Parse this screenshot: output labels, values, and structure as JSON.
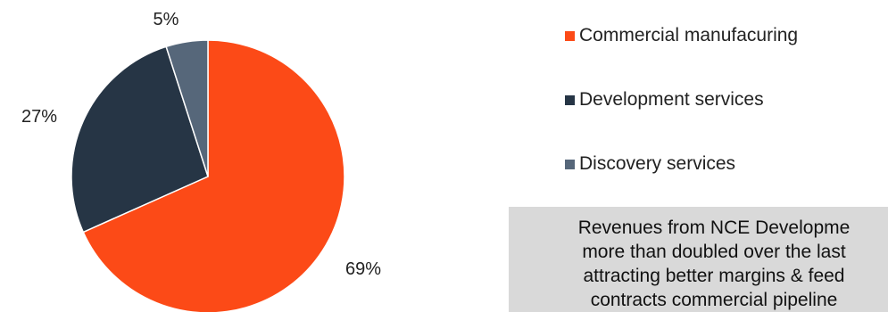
{
  "chart_data": {
    "type": "pie",
    "categories": [
      "Commercial manufacuring",
      "Development services",
      "Discovery services"
    ],
    "values": [
      69,
      27,
      5
    ],
    "value_labels": [
      "69%",
      "27%",
      "5%"
    ],
    "colors": [
      "#fc4a17",
      "#263545",
      "#56677a"
    ],
    "start_angle": "12 o'clock, clockwise",
    "legend_position": "right",
    "title": ""
  },
  "legend": {
    "items": [
      {
        "label": "Commercial manufacuring",
        "color": "#fc4a17"
      },
      {
        "label": "Development services",
        "color": "#263545"
      },
      {
        "label": "Discovery services",
        "color": "#56677a"
      }
    ]
  },
  "callout": {
    "lines": [
      "Revenues from NCE Developme",
      "more than doubled over the last",
      "attracting better margins & feed",
      "contracts commercial pipeline"
    ],
    "background": "#d9d9d9"
  }
}
